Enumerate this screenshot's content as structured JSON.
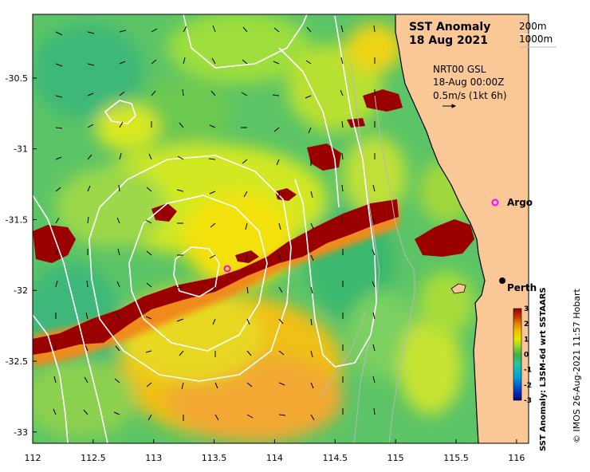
{
  "title": {
    "line1": "SST Anomaly",
    "line2": "18 Aug 2021"
  },
  "depth_legend": {
    "a": "200m",
    "b": "1000m"
  },
  "current_info": {
    "line1": "NRT00 GSL",
    "line2": "18-Aug 00:00Z",
    "line3": "0.5m/s (1kt 6h)"
  },
  "places": [
    {
      "name": "Argo",
      "lon": 115.85,
      "lat": -31.45,
      "marker": "magenta-ring"
    },
    {
      "name": "Perth",
      "lon": 115.86,
      "lat": -31.95,
      "marker": "black-dot"
    }
  ],
  "float_marker": {
    "lon": 113.6,
    "lat": -31.87,
    "marker": "magenta-ring"
  },
  "axes": {
    "x_ticks": [
      "112",
      "112.5",
      "113",
      "113.5",
      "114",
      "114.5",
      "115",
      "115.5",
      "116"
    ],
    "x_values": [
      112,
      112.5,
      113,
      113.5,
      114,
      114.5,
      115,
      115.5,
      116
    ],
    "y_ticks": [
      "-30.5",
      "-31",
      "-31.5",
      "-32",
      "-32.5",
      "-33"
    ],
    "y_values": [
      -30.5,
      -31,
      -31.5,
      -32,
      -32.5,
      -33
    ],
    "lon_range": [
      112,
      116.1
    ],
    "lat_range": [
      -33.08,
      -30.05
    ]
  },
  "colorbar": {
    "ticks": [
      "3",
      "2",
      "1",
      "0",
      "-1",
      "-2",
      "-3"
    ],
    "values": [
      3,
      2,
      1,
      0,
      -1,
      -2,
      -3
    ],
    "label": "SST Anomaly: L3SM-6d wrt SSTAARS",
    "colors": [
      "#08006f",
      "#0038c8",
      "#00a0d8",
      "#20c8a0",
      "#40b040",
      "#90d030",
      "#e0e800",
      "#f8c000",
      "#e08000",
      "#c03000",
      "#900000"
    ]
  },
  "credit": "© IMOS 26-Aug-2021 11:57 Hobart",
  "colors": {
    "land": "#fac896",
    "anomaly_high": "#9b0000",
    "anomaly_warm": "#f2b02a",
    "ocean_base": "#5cc466",
    "contour": "#ffffff"
  }
}
